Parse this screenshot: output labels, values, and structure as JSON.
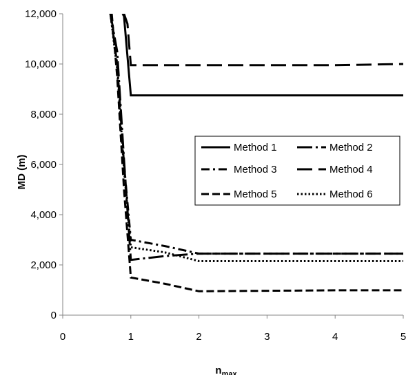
{
  "chart_data": {
    "type": "line",
    "xlabel": "n",
    "xlabel_subscript": "max",
    "ylabel": "MD (m)",
    "xlim": [
      0,
      5
    ],
    "ylim": [
      0,
      12000
    ],
    "xticks": [
      0,
      1,
      2,
      3,
      4,
      5
    ],
    "xtick_labels": [
      "0",
      "1",
      "2",
      "3",
      "4",
      "5"
    ],
    "yticks": [
      0,
      2000,
      4000,
      6000,
      8000,
      10000,
      12000
    ],
    "ytick_labels": [
      "0",
      "2,000",
      "4,000",
      "6,000",
      "8,000",
      "10,000",
      "12,000"
    ],
    "grid": false,
    "legend_position": "center-right",
    "series": [
      {
        "name": "Method 1",
        "style": "solid",
        "x": [
          0.88,
          0.9,
          1,
          2,
          3,
          4,
          5
        ],
        "y": [
          12000,
          11900,
          8750,
          8750,
          8750,
          8750,
          8750
        ]
      },
      {
        "name": "Method 2",
        "style": "longdash-dot",
        "x": [
          0.7,
          0.8,
          0.9,
          1,
          1.5,
          2,
          3,
          4,
          5
        ],
        "y": [
          12000,
          10500,
          6200,
          2200,
          2350,
          2450,
          2450,
          2450,
          2450
        ]
      },
      {
        "name": "Method 3",
        "style": "dashdot",
        "x": [
          0.7,
          0.8,
          0.9,
          1,
          1.5,
          2,
          3,
          4,
          5
        ],
        "y": [
          12000,
          10000,
          6000,
          3000,
          2750,
          2450,
          2450,
          2450,
          2450
        ]
      },
      {
        "name": "Method 4",
        "style": "longdash",
        "x": [
          0.9,
          0.95,
          1,
          2,
          3,
          4,
          5
        ],
        "y": [
          12000,
          11600,
          9950,
          9950,
          9950,
          9950,
          10000
        ]
      },
      {
        "name": "Method 5",
        "style": "dash",
        "x": [
          0.72,
          0.8,
          0.9,
          1,
          1.5,
          2,
          3,
          4,
          5
        ],
        "y": [
          12000,
          9500,
          5000,
          1500,
          1250,
          950,
          970,
          990,
          990
        ]
      },
      {
        "name": "Method 6",
        "style": "dotted",
        "x": [
          0.7,
          0.8,
          0.9,
          1,
          1.5,
          2,
          3,
          4,
          5
        ],
        "y": [
          12000,
          9800,
          5800,
          2700,
          2500,
          2150,
          2150,
          2150,
          2150
        ]
      }
    ]
  }
}
